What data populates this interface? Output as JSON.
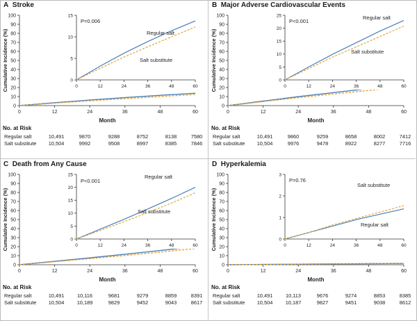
{
  "colors": {
    "regular_salt": "#4a7fb5",
    "salt_substitute": "#e0a43a",
    "axis": "#333333"
  },
  "risk_header": "No. at Risk",
  "x_axis_label": "Month",
  "y_axis_label": "Cumulative Incidence (%)",
  "chart_data": [
    {
      "letter": "A",
      "title": "Stroke",
      "type": "line",
      "x": [
        0,
        12,
        24,
        36,
        48,
        60
      ],
      "ylim": [
        0,
        100
      ],
      "yticks": [
        0,
        10,
        20,
        30,
        40,
        50,
        60,
        70,
        80,
        90,
        100
      ],
      "xticks": [
        0,
        12,
        24,
        36,
        48,
        60
      ],
      "series": [
        {
          "name": "Regular salt",
          "key": "regular_salt",
          "values": [
            0,
            3.2,
            6.2,
            8.9,
            11.4,
            13.7
          ]
        },
        {
          "name": "Salt substitute",
          "key": "salt_substitute",
          "values": [
            0,
            2.7,
            5.3,
            7.7,
            10.0,
            12.3
          ]
        }
      ],
      "inset": {
        "p_value": "P=0.006",
        "ylim": [
          0,
          15
        ],
        "yticks": [
          0,
          5,
          10,
          15
        ],
        "xticks": [
          0,
          12,
          24,
          36,
          48,
          60
        ],
        "labels": [
          {
            "text": "Regular salt",
            "series": 0
          },
          {
            "text": "Salt substitute",
            "series": 1
          }
        ]
      },
      "risk": {
        "rows": [
          {
            "label": "Regular salt",
            "values": [
              "10,491",
              "9870",
              "9288",
              "8752",
              "8138",
              "7580"
            ]
          },
          {
            "label": "Salt substitute",
            "values": [
              "10,504",
              "9992",
              "9508",
              "8997",
              "8385",
              "7846"
            ]
          }
        ]
      }
    },
    {
      "letter": "B",
      "title": "Major Adverse Cardiovascular Events",
      "type": "line",
      "x": [
        0,
        12,
        24,
        36,
        48,
        60
      ],
      "ylim": [
        0,
        100
      ],
      "yticks": [
        0,
        10,
        20,
        30,
        40,
        50,
        60,
        70,
        80,
        90,
        100
      ],
      "xticks": [
        0,
        12,
        24,
        36,
        48,
        60
      ],
      "series": [
        {
          "name": "Regular salt",
          "key": "regular_salt",
          "values": [
            0,
            5.0,
            9.9,
            14.4,
            18.9,
            23.0
          ]
        },
        {
          "name": "Salt substitute",
          "key": "salt_substitute",
          "values": [
            0,
            4.4,
            8.8,
            12.8,
            16.8,
            20.8
          ]
        }
      ],
      "inset": {
        "p_value": "P<0.001",
        "ylim": [
          0,
          25
        ],
        "yticks": [
          0,
          5,
          10,
          15,
          20,
          25
        ],
        "xticks": [
          0,
          12,
          24,
          36,
          48,
          60
        ],
        "labels": [
          {
            "text": "Regular salt",
            "series": 0
          },
          {
            "text": "Salt substitute",
            "series": 1
          }
        ]
      },
      "risk": {
        "rows": [
          {
            "label": "Regular salt",
            "values": [
              "10,491",
              "9860",
              "9259",
              "8658",
              "8002",
              "7412"
            ]
          },
          {
            "label": "Salt substitute",
            "values": [
              "10,504",
              "9976",
              "9478",
              "8922",
              "8277",
              "7716"
            ]
          }
        ]
      }
    },
    {
      "letter": "C",
      "title": "Death from Any Cause",
      "type": "line",
      "x": [
        0,
        12,
        24,
        36,
        48,
        60
      ],
      "ylim": [
        0,
        100
      ],
      "yticks": [
        0,
        10,
        20,
        30,
        40,
        50,
        60,
        70,
        80,
        90,
        100
      ],
      "xticks": [
        0,
        12,
        24,
        36,
        48,
        60
      ],
      "series": [
        {
          "name": "Regular salt",
          "key": "regular_salt",
          "values": [
            0,
            3.8,
            7.6,
            11.6,
            15.7,
            20.0
          ]
        },
        {
          "name": "Salt substitute",
          "key": "salt_substitute",
          "values": [
            0,
            3.3,
            6.7,
            10.2,
            13.9,
            17.9
          ]
        }
      ],
      "inset": {
        "p_value": "P<0.001",
        "ylim": [
          0,
          25
        ],
        "yticks": [
          0,
          5,
          10,
          15,
          20,
          25
        ],
        "xticks": [
          0,
          12,
          24,
          36,
          48,
          60
        ],
        "labels": [
          {
            "text": "Regular salt",
            "series": 0
          },
          {
            "text": "Salt substitute",
            "series": 1
          }
        ]
      },
      "risk": {
        "rows": [
          {
            "label": "Regular salt",
            "values": [
              "10,491",
              "10,116",
              "9681",
              "9279",
              "8859",
              "8391"
            ]
          },
          {
            "label": "Salt substitute",
            "values": [
              "10,504",
              "10,189",
              "9829",
              "9452",
              "9043",
              "8617"
            ]
          }
        ]
      }
    },
    {
      "letter": "D",
      "title": "Hyperkalemia",
      "type": "line",
      "x": [
        0,
        12,
        24,
        36,
        48,
        60
      ],
      "ylim": [
        0,
        100
      ],
      "yticks": [
        0,
        10,
        20,
        30,
        40,
        50,
        60,
        70,
        80,
        90,
        100
      ],
      "xticks": [
        0,
        12,
        24,
        36,
        48,
        60
      ],
      "series": [
        {
          "name": "Regular salt",
          "key": "regular_salt",
          "values": [
            0,
            0.3,
            0.6,
            0.9,
            1.15,
            1.4
          ]
        },
        {
          "name": "Salt substitute",
          "key": "salt_substitute",
          "values": [
            0,
            0.3,
            0.65,
            0.95,
            1.25,
            1.55
          ]
        }
      ],
      "inset": {
        "p_value": "P=0.76",
        "ylim": [
          0,
          3
        ],
        "yticks": [
          0,
          1,
          2,
          3
        ],
        "xticks": [
          0,
          12,
          24,
          36,
          48,
          60
        ],
        "labels": [
          {
            "text": "Salt substitute",
            "series": 1
          },
          {
            "text": "Regular salt",
            "series": 0
          }
        ]
      },
      "risk": {
        "rows": [
          {
            "label": "Regular salt",
            "values": [
              "10,491",
              "10,113",
              "9676",
              "9274",
              "8853",
              "8385"
            ]
          },
          {
            "label": "Salt substitute",
            "values": [
              "10,504",
              "10,187",
              "9827",
              "9451",
              "9038",
              "8612"
            ]
          }
        ]
      }
    }
  ]
}
